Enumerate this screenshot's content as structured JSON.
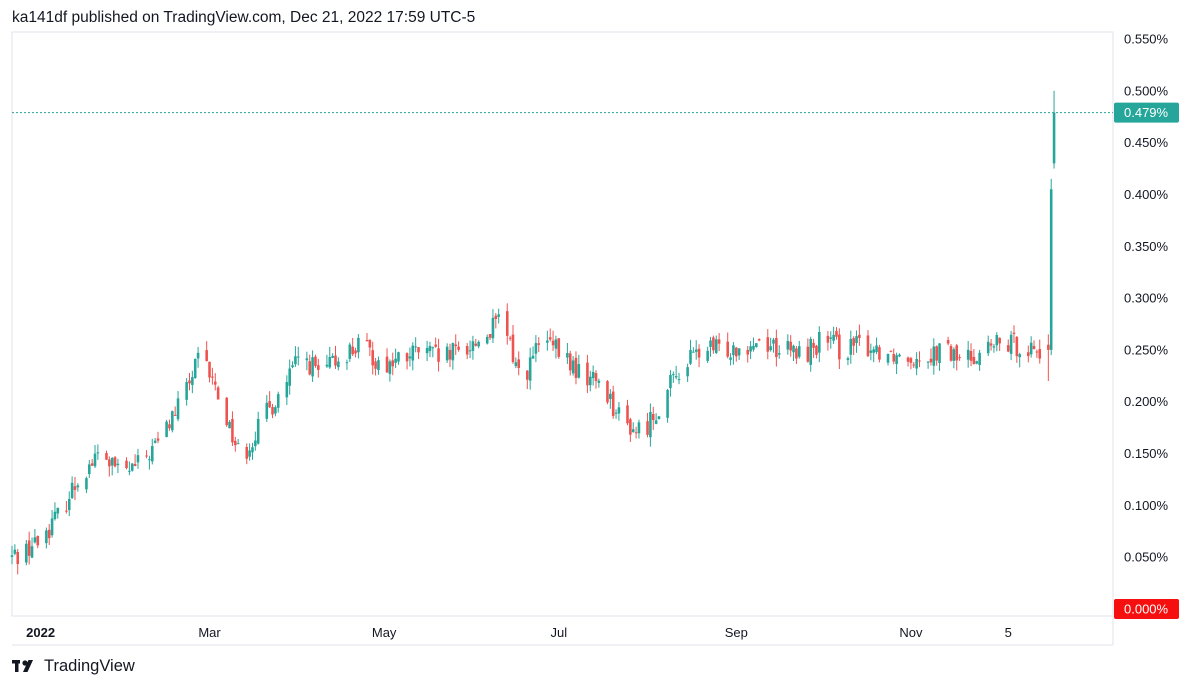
{
  "header": {
    "publish_line": "ka141df published on TradingView.com, Dec 21, 2022 17:59 UTC-5"
  },
  "footer": {
    "brand": "TradingView",
    "logo_icon": "tradingview-logo-icon"
  },
  "colors": {
    "up": "#26a69a",
    "down": "#ef5350",
    "last_price_badge": "#26a69a",
    "zero_badge": "#f50f0f",
    "price_line": "#26a69a",
    "frame": "#e0e3eb"
  },
  "chart_data": {
    "type": "candlestick",
    "title": "",
    "y_unit": "%",
    "ylim": [
      0,
      0.55
    ],
    "y_ticks": [
      {
        "value": 0.55,
        "label": "0.550%"
      },
      {
        "value": 0.5,
        "label": "0.500%"
      },
      {
        "value": 0.45,
        "label": "0.450%"
      },
      {
        "value": 0.4,
        "label": "0.400%"
      },
      {
        "value": 0.35,
        "label": "0.350%"
      },
      {
        "value": 0.3,
        "label": "0.300%"
      },
      {
        "value": 0.25,
        "label": "0.250%"
      },
      {
        "value": 0.2,
        "label": "0.200%"
      },
      {
        "value": 0.15,
        "label": "0.150%"
      },
      {
        "value": 0.1,
        "label": "0.100%"
      },
      {
        "value": 0.05,
        "label": "0.050%"
      },
      {
        "value": 0.0,
        "label": "0.000%"
      }
    ],
    "x_ticks": [
      {
        "date": "2022-01-01",
        "label": "2022",
        "bold": true
      },
      {
        "date": "2022-03-01",
        "label": "Mar",
        "bold": false
      },
      {
        "date": "2022-05-01",
        "label": "May",
        "bold": false
      },
      {
        "date": "2022-07-01",
        "label": "Jul",
        "bold": false
      },
      {
        "date": "2022-09-01",
        "label": "Sep",
        "bold": false
      },
      {
        "date": "2022-11-01",
        "label": "Nov",
        "bold": false
      },
      {
        "date": "2022-12-05",
        "label": "5",
        "bold": false
      }
    ],
    "x_range": [
      "2021-12-22",
      "2023-01-05"
    ],
    "last_price": {
      "value": 0.479,
      "label": "0.479%"
    },
    "zero_marker": {
      "value": 0.0,
      "label": "0.000%"
    },
    "series_dates": [
      "2021-12-22",
      "2021-12-31",
      "2022-01-07",
      "2022-01-15",
      "2022-01-22",
      "2022-01-29",
      "2022-02-05",
      "2022-02-12",
      "2022-02-19",
      "2022-02-26",
      "2022-03-05",
      "2022-03-12",
      "2022-03-19",
      "2022-03-26",
      "2022-04-02",
      "2022-04-09",
      "2022-04-16",
      "2022-04-23",
      "2022-04-30",
      "2022-05-07",
      "2022-05-14",
      "2022-05-21",
      "2022-05-28",
      "2022-06-04",
      "2022-06-11",
      "2022-06-18",
      "2022-06-25",
      "2022-07-02",
      "2022-07-09",
      "2022-07-16",
      "2022-07-23",
      "2022-07-30",
      "2022-08-06",
      "2022-08-13",
      "2022-08-20",
      "2022-08-27",
      "2022-09-03",
      "2022-09-10",
      "2022-09-17",
      "2022-09-24",
      "2022-10-01",
      "2022-10-08",
      "2022-10-15",
      "2022-10-22",
      "2022-10-29",
      "2022-11-05",
      "2022-11-12",
      "2022-11-19",
      "2022-11-26",
      "2022-12-03",
      "2022-12-10",
      "2022-12-16",
      "2022-12-19",
      "2022-12-20",
      "2022-12-21"
    ],
    "series_values": [
      0.05,
      0.065,
      0.09,
      0.13,
      0.15,
      0.13,
      0.14,
      0.165,
      0.2,
      0.245,
      0.2,
      0.145,
      0.18,
      0.21,
      0.245,
      0.225,
      0.245,
      0.255,
      0.235,
      0.24,
      0.25,
      0.24,
      0.25,
      0.26,
      0.28,
      0.22,
      0.26,
      0.245,
      0.225,
      0.22,
      0.18,
      0.17,
      0.2,
      0.235,
      0.25,
      0.25,
      0.255,
      0.26,
      0.25,
      0.245,
      0.26,
      0.25,
      0.255,
      0.25,
      0.245,
      0.245,
      0.25,
      0.24,
      0.25,
      0.255,
      0.255,
      0.25,
      0.405,
      0.43,
      0.479
    ]
  }
}
